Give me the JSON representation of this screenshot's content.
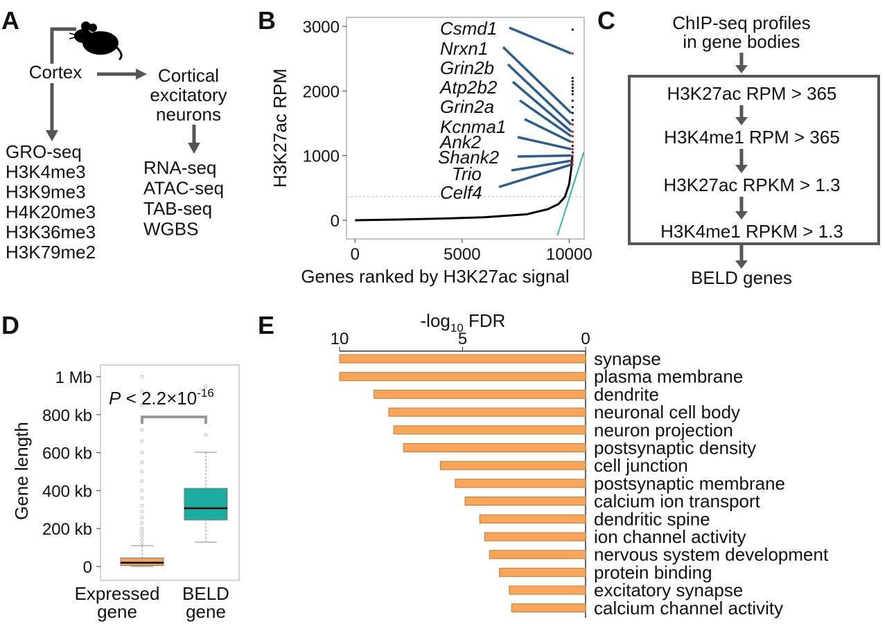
{
  "panel_labels": [
    "A",
    "B",
    "C",
    "D",
    "E"
  ],
  "panel_a": {
    "source": "Cortex",
    "target": [
      "Cortical",
      "excitatory",
      "neurons"
    ],
    "cortex_assays": [
      "GRO-seq",
      "H3K4me3",
      "H3K9me3",
      "H4K20me3",
      "H3K36me3",
      "H3K79me2"
    ],
    "neuron_assays": [
      "RNA-seq",
      "ATAC-seq",
      "TAB-seq",
      "WGBS"
    ]
  },
  "panel_c": {
    "input": [
      "ChIP-seq profiles",
      "in gene bodies"
    ],
    "filters": [
      "H3K27ac RPM > 365",
      "H3K4me1 RPM > 365",
      "H3K27ac RPKM > 1.3",
      "H3K4me1 RPKM > 1.3"
    ],
    "output": "BELD genes"
  },
  "chart_data": [
    {
      "type": "line",
      "xlabel": "Genes ranked by H3K27ac signal",
      "ylabel": "H3K27ac RPM",
      "x": [
        0,
        2000,
        4000,
        6000,
        8000,
        9000,
        9500,
        9800,
        10000,
        10100,
        10150
      ],
      "values": [
        0,
        10,
        25,
        45,
        90,
        170,
        250,
        360,
        560,
        800,
        1000
      ],
      "color": "#000000",
      "xlim": [
        -400,
        10700
      ],
      "ylim": [
        -290,
        3140
      ],
      "xticks": [
        0,
        5000,
        10000
      ],
      "yticks": [
        0,
        1000,
        2000,
        3000
      ],
      "threshold": 365,
      "top_points": {
        "x": [
          10160,
          10160,
          10160,
          10160,
          10160,
          10160,
          10160,
          10160,
          10160,
          10160,
          10160,
          10160,
          10160,
          10160,
          10160,
          10160,
          10160,
          10160,
          10160,
          10160,
          10160,
          10160,
          10160,
          10160,
          10160,
          10160,
          10160
        ],
        "values": [
          1050,
          1100,
          1150,
          1210,
          1300,
          1370,
          1480,
          1550,
          1660,
          1750,
          1850,
          1950,
          2000,
          2050,
          2100,
          2150,
          2200,
          860,
          920,
          1000,
          1100,
          1210,
          1300,
          1370,
          1480,
          2580,
          2950
        ],
        "colors": [
          "#000000",
          "#000000",
          "#000000",
          "#000000",
          "#000000",
          "#000000",
          "#000000",
          "#000000",
          "#000000",
          "#000000",
          "#000000",
          "#000000",
          "#000000",
          "#000000",
          "#000000",
          "#000000",
          "#000000",
          "#e02020",
          "#e02020",
          "#e02020",
          "#e02020",
          "#e02020",
          "#e02020",
          "#e02020",
          "#e02020",
          "#e02020",
          "#000000"
        ]
      },
      "annotations": [
        {
          "label": "Csmd1",
          "x": 10160,
          "value": 2580
        },
        {
          "label": "Nrxn1",
          "x": 10160,
          "value": 1660
        },
        {
          "label": "Grin2b",
          "x": 10160,
          "value": 1480
        },
        {
          "label": "Atp2b2",
          "x": 10160,
          "value": 1370
        },
        {
          "label": "Grin2a",
          "x": 10160,
          "value": 1300
        },
        {
          "label": "Kcnma1",
          "x": 10160,
          "value": 1210
        },
        {
          "label": "Ank2",
          "x": 10160,
          "value": 1100
        },
        {
          "label": "Shank2",
          "x": 10160,
          "value": 1000
        },
        {
          "label": "Trio",
          "x": 10160,
          "value": 920
        },
        {
          "label": "Celf4",
          "x": 10160,
          "value": 860
        }
      ],
      "annotation_color": "#2a5d94",
      "fit_line": {
        "x": [
          9450,
          10680
        ],
        "values": [
          -236,
          1050
        ],
        "color": "#33b5b5"
      }
    },
    {
      "type": "box",
      "ylabel": "Gene length",
      "categories": [
        [
          "Expressed",
          "gene"
        ],
        [
          "BELD",
          "gene"
        ]
      ],
      "boxes": [
        {
          "whislo": 0,
          "q1": 5,
          "median": 20,
          "q3": 45,
          "whishi": 110,
          "color": "#f4a35c",
          "fliers": [
            120,
            140,
            160,
            180,
            200,
            230,
            260,
            290,
            320,
            360,
            400,
            450,
            500,
            550,
            600,
            660,
            720,
            780,
            850,
            920,
            1000
          ]
        },
        {
          "whislo": 128,
          "q1": 245,
          "median": 307,
          "q3": 412,
          "whishi": 602,
          "color": "#1aada0",
          "fliers": [
            693,
            788,
            950
          ]
        }
      ],
      "ylim": [
        -73,
        1062
      ],
      "yticks": [
        0,
        {
          "value": 200,
          "label": "200 kb"
        },
        {
          "value": 400,
          "label": "400 kb"
        },
        {
          "value": 600,
          "label": "600 kb"
        },
        {
          "value": 800,
          "label": "800 kb"
        },
        {
          "value": 1000,
          "label": "1 Mb"
        }
      ],
      "annotation": {
        "italic": "P",
        "text": " < 2.2×10",
        "sup": "-16"
      }
    },
    {
      "type": "barh",
      "title": {
        "base": "-log",
        "sub": "10",
        "rest": " FDR"
      },
      "categories": [
        "synapse",
        "plasma membrane",
        "dendrite",
        "neuronal cell body",
        "neuron projection",
        "postsynaptic density",
        "cell junction",
        "postsynaptic membrane",
        "calcium ion transport",
        "dendritic spine",
        "ion channel activity",
        "nervous system development",
        "protein binding",
        "excitatory synapse",
        "calcium channel activity"
      ],
      "values": [
        10.0,
        10.0,
        8.6,
        8.0,
        7.8,
        7.4,
        5.9,
        5.3,
        4.9,
        4.3,
        4.1,
        3.9,
        3.5,
        3.1,
        3.0
      ],
      "xlim": [
        10,
        0
      ],
      "xticks": [
        10,
        5,
        0
      ],
      "color": "#f9a65a"
    }
  ]
}
